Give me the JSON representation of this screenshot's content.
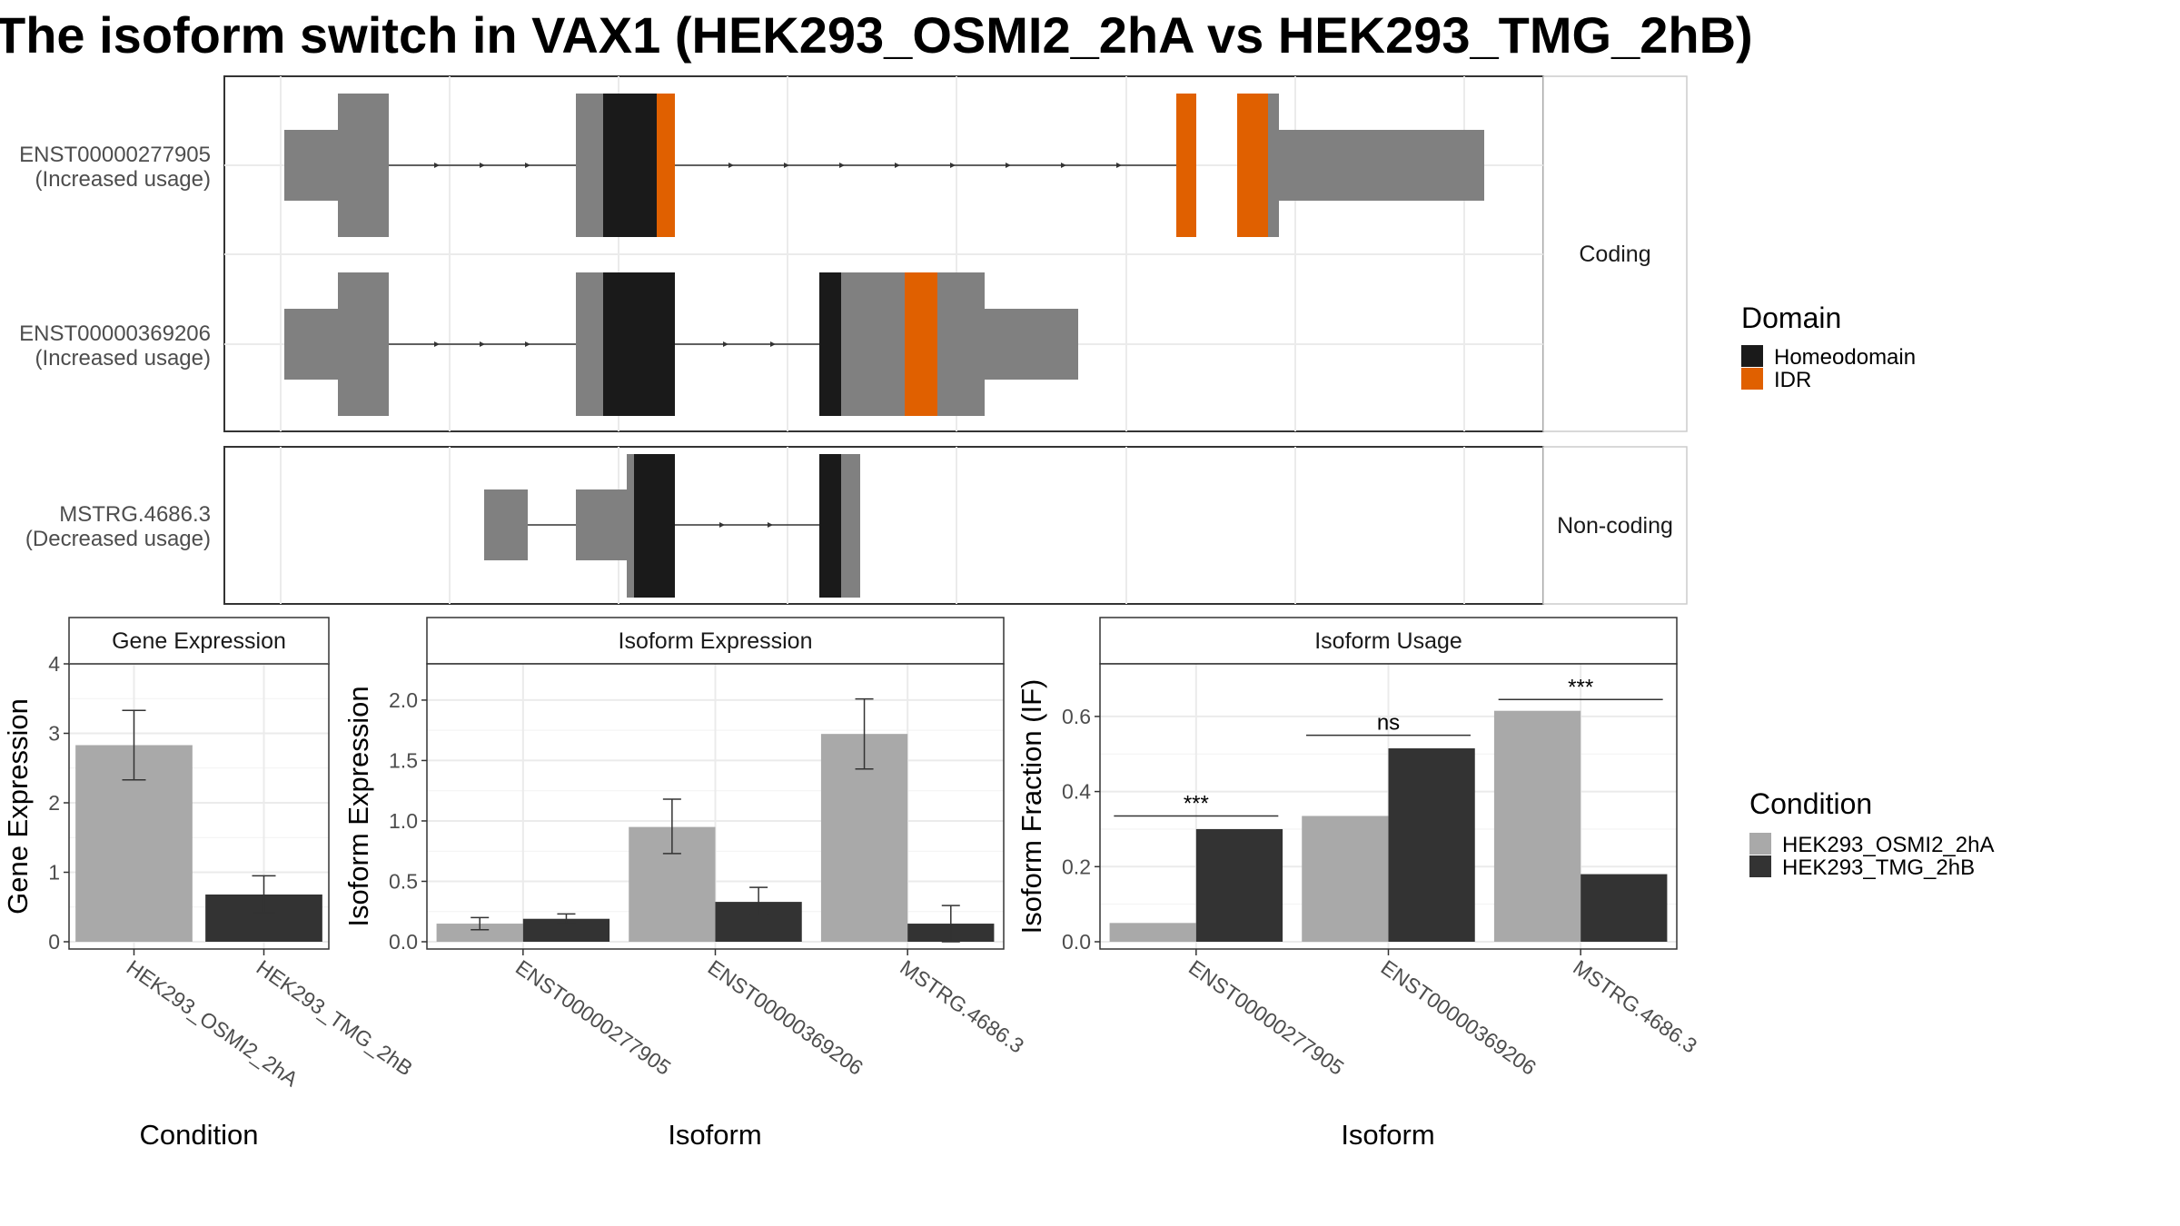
{
  "title": "The isoform switch in VAX1 (HEK293_OSMI2_2hA vs HEK293_TMG_2hB)",
  "colors": {
    "exon_default": "#808080",
    "homeodomain": "#1a1a1a",
    "idr": "#e06000",
    "condition_a": "#a9a9a9",
    "condition_b": "#333333",
    "grid": "#ebebeb",
    "panel_border": "#333333",
    "strip_border": "#cccccc"
  },
  "structure": {
    "facets": [
      {
        "label": "Coding",
        "tracks": [
          {
            "name": "ENST00000277905",
            "status": "(Increased usage)"
          },
          {
            "name": "ENST00000369206",
            "status": "(Increased usage)"
          }
        ]
      },
      {
        "label": "Non-coding",
        "tracks": [
          {
            "name": "MSTRG.4686.3",
            "status": "(Decreased usage)"
          }
        ]
      }
    ]
  },
  "legends": {
    "domain": {
      "title": "Domain",
      "items": [
        "Homeodomain",
        "IDR"
      ]
    },
    "condition": {
      "title": "Condition",
      "items": [
        "HEK293_OSMI2_2hA",
        "HEK293_TMG_2hB"
      ]
    }
  },
  "chart_data": [
    {
      "type": "bar",
      "title": "Gene Expression",
      "xlabel": "Condition",
      "ylabel": "Gene Expression",
      "ylim": [
        0,
        4
      ],
      "yticks": [
        "0",
        "1",
        "2",
        "3",
        "4"
      ],
      "categories": [
        "HEK293_OSMI2_2hA",
        "HEK293_TMG_2hB"
      ],
      "values": [
        2.83,
        0.68
      ],
      "error_low": [
        2.33,
        0.42
      ],
      "error_high": [
        3.33,
        0.95
      ]
    },
    {
      "type": "bar",
      "title": "Isoform Expression",
      "xlabel": "Isoform",
      "ylabel": "Isoform Expression",
      "ylim": [
        0,
        2.3
      ],
      "yticks": [
        "0.0",
        "0.5",
        "1.0",
        "1.5",
        "2.0"
      ],
      "categories": [
        "ENST00000277905",
        "ENST00000369206",
        "MSTRG.4686.3"
      ],
      "series": [
        {
          "name": "HEK293_OSMI2_2hA",
          "values": [
            0.15,
            0.95,
            1.72
          ],
          "error_low": [
            0.1,
            0.73,
            1.43
          ],
          "error_high": [
            0.2,
            1.18,
            2.01
          ]
        },
        {
          "name": "HEK293_TMG_2hB",
          "values": [
            0.19,
            0.33,
            0.15
          ],
          "error_low": [
            0.15,
            0.22,
            0.0
          ],
          "error_high": [
            0.23,
            0.45,
            0.3
          ]
        }
      ]
    },
    {
      "type": "bar",
      "title": "Isoform Usage",
      "xlabel": "Isoform",
      "ylabel": "Isoform Fraction (IF)",
      "ylim": [
        0,
        0.74
      ],
      "yticks": [
        "0.0",
        "0.2",
        "0.4",
        "0.6"
      ],
      "categories": [
        "ENST00000277905",
        "ENST00000369206",
        "MSTRG.4686.3"
      ],
      "series": [
        {
          "name": "HEK293_OSMI2_2hA",
          "values": [
            0.05,
            0.335,
            0.615
          ]
        },
        {
          "name": "HEK293_TMG_2hB",
          "values": [
            0.3,
            0.515,
            0.18
          ]
        }
      ],
      "significance": [
        "***",
        "ns",
        "***"
      ],
      "significance_y": [
        0.335,
        0.55,
        0.645
      ]
    }
  ]
}
